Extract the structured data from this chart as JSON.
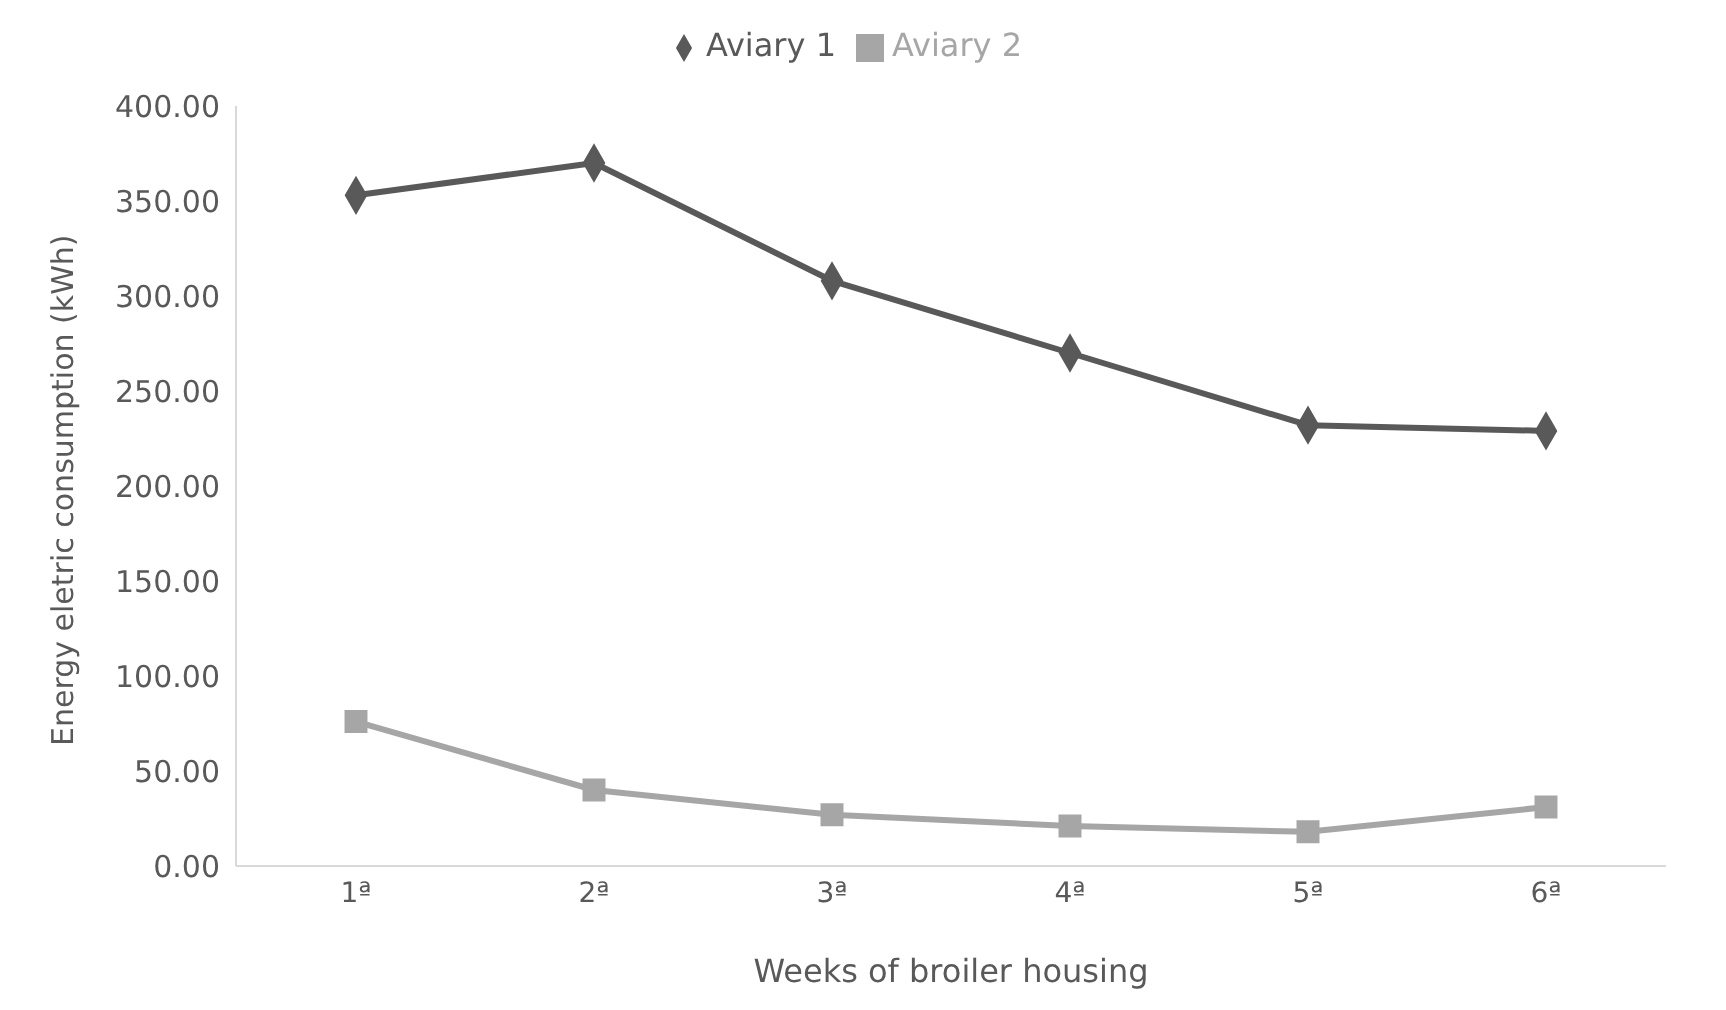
{
  "chart_data": {
    "type": "line",
    "xlabel": "Weeks of broiler housing",
    "ylabel": "Energy eletric consumption (kWh)",
    "categories": [
      "1ª",
      "2ª",
      "3ª",
      "4ª",
      "5ª",
      "6ª"
    ],
    "series": [
      {
        "name": "Aviary 1",
        "color": "#595959",
        "marker": "diamond",
        "values": [
          353,
          370,
          308,
          270,
          232,
          229
        ]
      },
      {
        "name": "Aviary 2",
        "color": "#a6a6a6",
        "marker": "square",
        "values": [
          76,
          40,
          27,
          21,
          18,
          31
        ]
      }
    ],
    "ylim": [
      0,
      400
    ],
    "yticks": [
      {
        "value": 0,
        "label": "0.00"
      },
      {
        "value": 50,
        "label": "50.00"
      },
      {
        "value": 100,
        "label": "100.00"
      },
      {
        "value": 150,
        "label": "150.00"
      },
      {
        "value": 200,
        "label": "200.00"
      },
      {
        "value": 250,
        "label": "250.00"
      },
      {
        "value": 300,
        "label": "300.00"
      },
      {
        "value": 350,
        "label": "350.00"
      },
      {
        "value": 400,
        "label": "400.00"
      }
    ],
    "grid": false,
    "legend": "top",
    "line_style": "solid"
  }
}
